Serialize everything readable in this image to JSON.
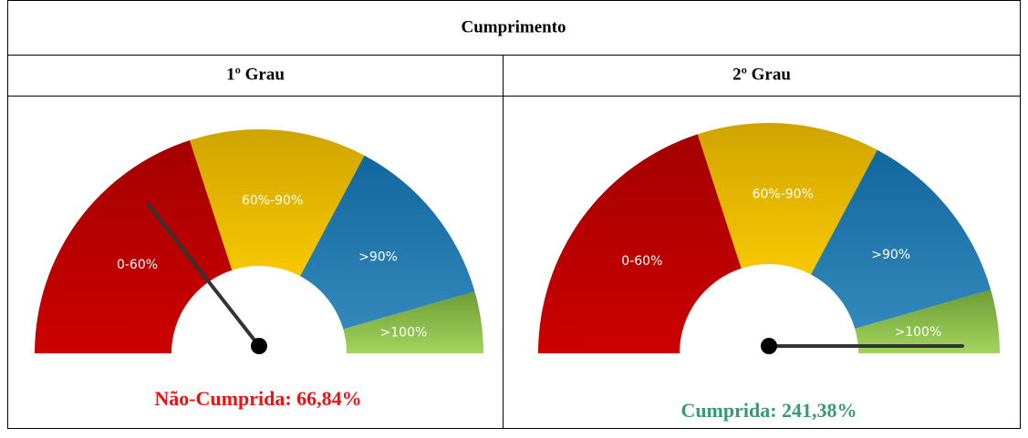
{
  "table": {
    "title": "Cumprimento",
    "columns": [
      {
        "header": "1º Grau",
        "gauge": {
          "labels": [
            "0-60%",
            "60%-90%",
            ">90%",
            ">100%"
          ]
        },
        "status": "Não-Cumprida: 66,84%"
      },
      {
        "header": "2º Grau",
        "gauge": {
          "labels": [
            "0-60%",
            "60%-90%",
            ">90%",
            ">100%"
          ]
        },
        "status": "Cumprida: 241,38%"
      }
    ]
  }
}
